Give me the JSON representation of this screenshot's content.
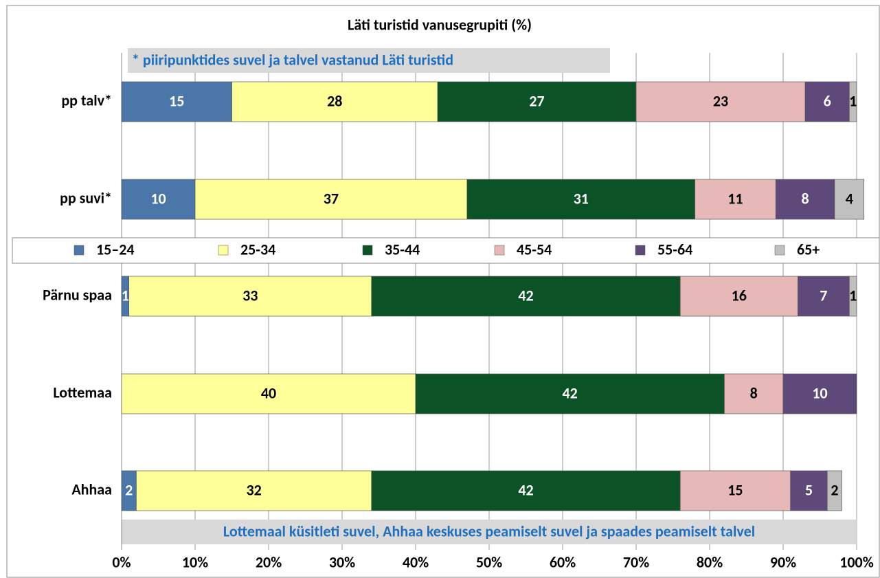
{
  "chart_data": {
    "type": "stacked_barh",
    "title": "Läti turistid vanusegrupiti (%)",
    "annotations": [
      "* piiripunktides suvel ja talvel vastanud Läti turistid",
      "Lottemaal küsitleti suvel, Ahhaa keskuses peamiselt suvel ja spaades peamiselt talvel"
    ],
    "categories": [
      "pp talv*",
      "pp suvi*",
      "Pärnu spaa",
      "Lottemaa",
      "Ahhaa"
    ],
    "series": [
      {
        "name": "15–24",
        "color": "#4a76aa",
        "values": [
          15,
          10,
          1,
          null,
          2
        ]
      },
      {
        "name": "25-34",
        "color": "#ffff99",
        "values": [
          28,
          37,
          33,
          40,
          32
        ]
      },
      {
        "name": "35-44",
        "color": "#0b5226",
        "values": [
          27,
          31,
          42,
          42,
          42
        ]
      },
      {
        "name": "45-54",
        "color": "#e6b8b7",
        "values": [
          23,
          11,
          16,
          8,
          15
        ]
      },
      {
        "name": "55-64",
        "color": "#5e497a",
        "values": [
          6,
          8,
          7,
          10,
          5
        ]
      },
      {
        "name": "65+",
        "color": "#c0c0c0",
        "values": [
          1,
          4,
          1,
          null,
          2
        ]
      }
    ],
    "xlim": [
      0,
      100
    ],
    "xticks": [
      {
        "value": 0,
        "label": "0%"
      },
      {
        "value": 10,
        "label": "10%"
      },
      {
        "value": 20,
        "label": "20%"
      },
      {
        "value": 30,
        "label": "30%"
      },
      {
        "value": 40,
        "label": "40%"
      },
      {
        "value": 50,
        "label": "50%"
      },
      {
        "value": 60,
        "label": "60%"
      },
      {
        "value": 70,
        "label": "70%"
      },
      {
        "value": 80,
        "label": "80%"
      },
      {
        "value": 90,
        "label": "90%"
      },
      {
        "value": 100,
        "label": "100%"
      }
    ],
    "grid": true
  }
}
